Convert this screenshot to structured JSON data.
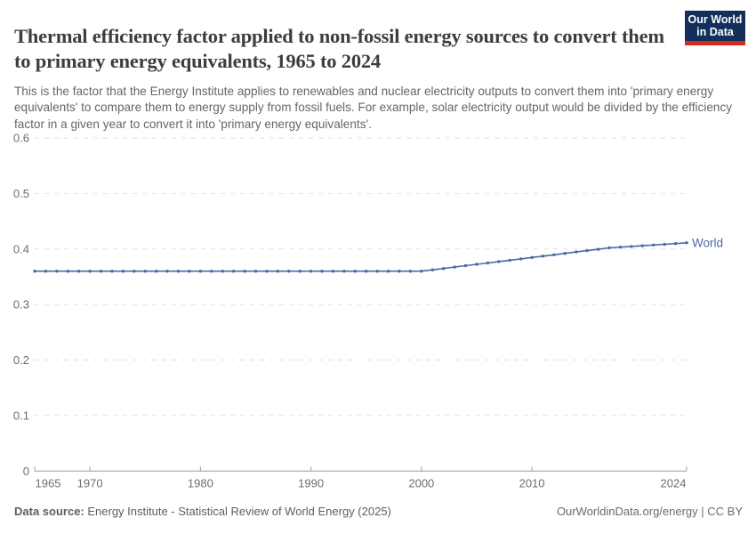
{
  "header": {
    "title": "Thermal efficiency factor applied to non-fossil energy sources to convert them to primary energy equivalents, 1965 to 2024",
    "subtitle": "This is the factor that the Energy Institute applies to renewables and nuclear electricity outputs to convert them into 'primary energy equivalents' to compare them to energy supply from fossil fuels. For example, solar electricity output would be divided by the efficiency factor in a given year to convert it into 'primary energy equivalents'.",
    "logo": {
      "line1": "Our World",
      "line2": "in Data",
      "bg_color": "#13305c",
      "bar_color": "#d42b21"
    }
  },
  "chart_data": {
    "type": "line",
    "title": "Thermal efficiency factor applied to non-fossil energy sources to convert them to primary energy equivalents",
    "xlabel": "",
    "ylabel": "",
    "x_range": [
      1965,
      2024
    ],
    "y_range": [
      0,
      0.6
    ],
    "grid": true,
    "legend_position": "end-of-line",
    "y_ticks": [
      {
        "v": 0,
        "label": "0"
      },
      {
        "v": 0.1,
        "label": "0.1"
      },
      {
        "v": 0.2,
        "label": "0.2"
      },
      {
        "v": 0.3,
        "label": "0.3"
      },
      {
        "v": 0.4,
        "label": "0.4"
      },
      {
        "v": 0.5,
        "label": "0.5"
      },
      {
        "v": 0.6,
        "label": "0.6"
      }
    ],
    "x_ticks": [
      {
        "year": 1965,
        "label": "1965",
        "align": "first"
      },
      {
        "year": 1970,
        "label": "1970",
        "align": "center"
      },
      {
        "year": 1980,
        "label": "1980",
        "align": "center"
      },
      {
        "year": 1990,
        "label": "1990",
        "align": "center"
      },
      {
        "year": 2000,
        "label": "2000",
        "align": "center"
      },
      {
        "year": 2010,
        "label": "2010",
        "align": "center"
      },
      {
        "year": 2024,
        "label": "2024",
        "align": "last"
      }
    ],
    "x_values": [
      1965,
      1966,
      1967,
      1968,
      1969,
      1970,
      1971,
      1972,
      1973,
      1974,
      1975,
      1976,
      1977,
      1978,
      1979,
      1980,
      1981,
      1982,
      1983,
      1984,
      1985,
      1986,
      1987,
      1988,
      1989,
      1990,
      1991,
      1992,
      1993,
      1994,
      1995,
      1996,
      1997,
      1998,
      1999,
      2000,
      2001,
      2002,
      2003,
      2004,
      2005,
      2006,
      2007,
      2008,
      2009,
      2010,
      2011,
      2012,
      2013,
      2014,
      2015,
      2016,
      2017,
      2018,
      2019,
      2020,
      2021,
      2022,
      2023,
      2024
    ],
    "series": [
      {
        "name": "World",
        "color": "#4a6aa5",
        "values": [
          0.36,
          0.36,
          0.36,
          0.36,
          0.36,
          0.36,
          0.36,
          0.36,
          0.36,
          0.36,
          0.36,
          0.36,
          0.36,
          0.36,
          0.36,
          0.36,
          0.36,
          0.36,
          0.36,
          0.36,
          0.36,
          0.36,
          0.36,
          0.36,
          0.36,
          0.36,
          0.36,
          0.36,
          0.36,
          0.36,
          0.36,
          0.36,
          0.36,
          0.36,
          0.36,
          0.36,
          0.3625,
          0.3649,
          0.3674,
          0.3699,
          0.3724,
          0.3748,
          0.3773,
          0.3798,
          0.3822,
          0.3847,
          0.3872,
          0.3896,
          0.3921,
          0.3946,
          0.3971,
          0.3995,
          0.402,
          0.4033,
          0.4046,
          0.4059,
          0.4072,
          0.4085,
          0.4098,
          0.4111
        ]
      }
    ]
  },
  "footer": {
    "source_label": "Data source:",
    "source_text": " Energy Institute - Statistical Review of World Energy (2025)",
    "right_text": "OurWorldinData.org/energy | CC BY"
  }
}
